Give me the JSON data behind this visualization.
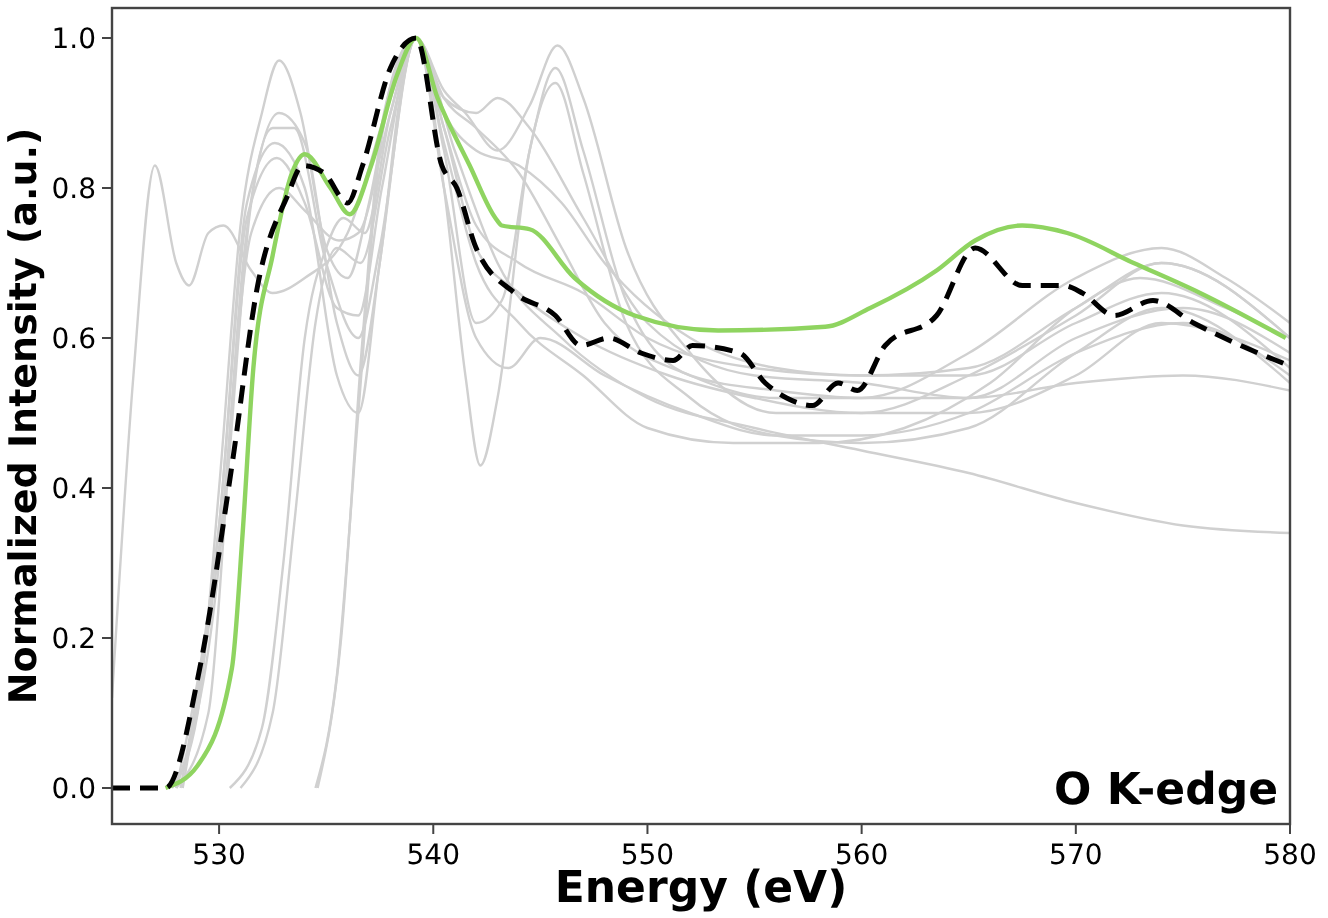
{
  "chart_data": {
    "type": "line",
    "xlabel": "Energy (eV)",
    "ylabel": "Normalized Intensity (a.u.)",
    "xlim": [
      525,
      580
    ],
    "xticks": [
      530,
      540,
      550,
      560,
      570,
      580
    ],
    "ylim": [
      -0.048,
      1.04
    ],
    "yticks": [
      {
        "value": 0,
        "label": "0.0"
      },
      {
        "value": 0.2,
        "label": "0.2"
      },
      {
        "value": 0.4,
        "label": "0.4"
      },
      {
        "value": 0.6,
        "label": "0.6"
      },
      {
        "value": 0.8,
        "label": "0.8"
      },
      {
        "value": 1,
        "label": "1.0"
      }
    ],
    "grid": false,
    "marker": "none",
    "annotations": [
      "O K-edge"
    ],
    "series": [
      {
        "color": "#d0d0d0",
        "x": [
          525,
          526,
          527,
          528,
          528.6,
          529.5,
          530.2,
          531.5,
          532.5,
          534,
          536,
          538,
          539.2,
          541,
          543,
          546,
          550,
          555,
          560,
          565,
          570,
          575,
          580
        ],
        "values": [
          0.12,
          0.55,
          0.83,
          0.7,
          0.67,
          0.74,
          0.75,
          0.69,
          0.66,
          0.68,
          0.74,
          0.92,
          1.0,
          0.85,
          0.7,
          0.6,
          0.52,
          0.48,
          0.45,
          0.42,
          0.38,
          0.35,
          0.34
        ]
      },
      {
        "color": "#d0d0d0",
        "x": [
          527.8,
          529,
          530,
          531,
          532,
          532.8,
          533.8,
          535,
          536,
          537,
          538.2,
          539.2,
          540.5,
          542,
          544,
          546,
          548,
          552,
          556,
          560,
          565,
          570,
          574,
          577,
          580
        ],
        "values": [
          0,
          0.1,
          0.4,
          0.75,
          0.9,
          0.97,
          0.9,
          0.72,
          0.68,
          0.78,
          0.95,
          1.0,
          0.92,
          0.88,
          0.82,
          0.72,
          0.62,
          0.55,
          0.52,
          0.52,
          0.58,
          0.68,
          0.72,
          0.68,
          0.62
        ]
      },
      {
        "color": "#d0d0d0",
        "x": [
          528,
          529.5,
          530.5,
          531.5,
          532.8,
          534,
          535.5,
          536.5,
          537.5,
          538.5,
          539.2,
          540.5,
          542,
          544,
          547,
          550,
          555,
          560,
          565,
          570,
          574,
          580
        ],
        "values": [
          0,
          0.1,
          0.45,
          0.78,
          0.9,
          0.86,
          0.62,
          0.55,
          0.7,
          0.93,
          1.0,
          0.88,
          0.75,
          0.7,
          0.66,
          0.6,
          0.56,
          0.55,
          0.55,
          0.62,
          0.66,
          0.56
        ]
      },
      {
        "color": "#d0d0d0",
        "x": [
          528,
          530,
          531.2,
          532.5,
          533.5,
          535,
          536.5,
          537.5,
          539.2,
          540.5,
          542,
          543.5,
          545,
          548,
          552,
          556,
          560,
          565,
          570,
          575,
          580
        ],
        "values": [
          0,
          0.3,
          0.72,
          0.88,
          0.88,
          0.7,
          0.6,
          0.72,
          1.0,
          0.8,
          0.6,
          0.56,
          0.6,
          0.55,
          0.5,
          0.47,
          0.47,
          0.5,
          0.58,
          0.62,
          0.55
        ]
      },
      {
        "color": "#d0d0d0",
        "x": [
          530.5,
          532,
          533,
          534,
          535,
          535.8,
          536.8,
          538,
          539.2,
          540.5,
          541.5,
          543,
          544.5,
          545.8,
          547,
          549,
          552,
          556,
          560,
          565,
          570,
          574,
          580
        ],
        "values": [
          0,
          0.08,
          0.3,
          0.6,
          0.72,
          0.76,
          0.74,
          0.9,
          1.0,
          0.93,
          0.9,
          0.85,
          0.91,
          0.99,
          0.92,
          0.72,
          0.58,
          0.5,
          0.5,
          0.55,
          0.63,
          0.7,
          0.6
        ]
      },
      {
        "color": "#d0d0d0",
        "x": [
          531,
          532.5,
          533.5,
          534.5,
          535.5,
          536.6,
          538,
          539.2,
          540.5,
          542,
          543.2,
          544.5,
          545.7,
          547,
          549,
          552,
          556,
          560,
          565,
          570,
          575,
          580
        ],
        "values": [
          0,
          0.1,
          0.35,
          0.62,
          0.72,
          0.7,
          0.88,
          1.0,
          0.85,
          0.62,
          0.65,
          0.85,
          0.96,
          0.85,
          0.65,
          0.55,
          0.53,
          0.52,
          0.52,
          0.6,
          0.64,
          0.58
        ]
      },
      {
        "color": "#d0d0d0",
        "x": [
          534.5,
          535.5,
          536.5,
          537.5,
          538.5,
          539.2,
          540.5,
          541.5,
          542.2,
          543,
          544.5,
          545.7,
          547,
          549,
          552,
          556,
          560,
          565,
          570,
          574,
          580
        ],
        "values": [
          0,
          0.15,
          0.5,
          0.85,
          0.98,
          1.0,
          0.8,
          0.55,
          0.43,
          0.52,
          0.85,
          0.94,
          0.82,
          0.62,
          0.52,
          0.47,
          0.46,
          0.48,
          0.58,
          0.64,
          0.54
        ]
      },
      {
        "color": "#d0d0d0",
        "x": [
          534.6,
          535.7,
          536.7,
          537.7,
          539.2,
          540.5,
          542,
          544,
          547,
          550,
          554,
          558,
          562,
          566,
          570,
          573,
          577,
          580
        ],
        "values": [
          0,
          0.2,
          0.6,
          0.9,
          1.0,
          0.86,
          0.7,
          0.62,
          0.55,
          0.48,
          0.46,
          0.46,
          0.48,
          0.54,
          0.64,
          0.68,
          0.64,
          0.6
        ]
      },
      {
        "color": "#d0d0d0",
        "x": [
          528.2,
          530,
          531.3,
          532.6,
          534,
          535.5,
          536.5,
          537.5,
          539.2,
          540.5,
          542,
          544,
          546,
          548,
          552,
          556,
          560,
          565,
          570,
          574,
          580
        ],
        "values": [
          0,
          0.35,
          0.78,
          0.86,
          0.8,
          0.55,
          0.5,
          0.7,
          1.0,
          0.9,
          0.85,
          0.83,
          0.78,
          0.7,
          0.6,
          0.56,
          0.55,
          0.56,
          0.64,
          0.7,
          0.6
        ]
      },
      {
        "color": "#d0d0d0",
        "x": [
          528,
          530,
          531.3,
          532.7,
          534,
          535.5,
          536.5,
          537.6,
          539.2,
          540.5,
          542,
          544,
          547,
          551,
          555,
          560,
          565,
          570,
          574,
          580
        ],
        "values": [
          0,
          0.35,
          0.76,
          0.84,
          0.78,
          0.64,
          0.63,
          0.8,
          1.0,
          0.88,
          0.72,
          0.66,
          0.6,
          0.55,
          0.52,
          0.5,
          0.5,
          0.55,
          0.62,
          0.57
        ]
      },
      {
        "color": "#d0d0d0",
        "x": [
          528.3,
          530,
          531.5,
          532.8,
          534,
          535.6,
          536.5,
          538,
          539.2,
          540.5,
          542,
          543,
          544.5,
          547,
          550,
          555,
          560,
          565,
          570,
          575,
          580
        ],
        "values": [
          0,
          0.32,
          0.74,
          0.8,
          0.77,
          0.73,
          0.74,
          0.9,
          1.0,
          0.92,
          0.9,
          0.92,
          0.88,
          0.76,
          0.62,
          0.55,
          0.54,
          0.52,
          0.54,
          0.55,
          0.53
        ]
      },
      {
        "color": "#8fd460",
        "x": [
          527.5,
          529,
          530.6,
          531.1,
          531.6,
          532.5,
          533.4,
          534,
          535.2,
          536.1,
          537.1,
          538.3,
          539.2,
          540.2,
          541.7,
          542.9,
          543.2,
          544.5,
          546.6,
          549.4,
          553.3,
          558.3,
          560.4,
          563.5,
          565.3,
          567.5,
          569.6,
          572.7,
          575.8,
          579.8
        ],
        "values": [
          0,
          0.03,
          0.16,
          0.34,
          0.56,
          0.71,
          0.82,
          0.845,
          0.8,
          0.765,
          0.83,
          0.95,
          1.0,
          0.92,
          0.83,
          0.76,
          0.75,
          0.745,
          0.68,
          0.63,
          0.61,
          0.615,
          0.64,
          0.69,
          0.73,
          0.75,
          0.74,
          0.7,
          0.66,
          0.6
        ]
      },
      {
        "color": "#000000",
        "line_style": "dashed",
        "x": [
          525,
          527.5,
          529.1,
          530.6,
          531.8,
          533.2,
          533.9,
          534.9,
          536,
          536.7,
          538,
          539.2,
          540.4,
          541.1,
          542,
          543.8,
          545.7,
          546.9,
          548.2,
          549.7,
          551.2,
          552.1,
          554.3,
          555.5,
          556.5,
          557.7,
          558.9,
          559.8,
          561.1,
          563.5,
          565.3,
          567.5,
          569.4,
          570.3,
          571.8,
          573.6,
          575.5,
          577.7,
          579.8
        ],
        "values": [
          0,
          0,
          0.16,
          0.43,
          0.67,
          0.79,
          0.83,
          0.82,
          0.78,
          0.83,
          0.96,
          1.0,
          0.83,
          0.8,
          0.72,
          0.66,
          0.63,
          0.59,
          0.6,
          0.58,
          0.57,
          0.59,
          0.58,
          0.54,
          0.52,
          0.51,
          0.54,
          0.53,
          0.59,
          0.63,
          0.72,
          0.67,
          0.67,
          0.66,
          0.63,
          0.65,
          0.62,
          0.59,
          0.565
        ]
      }
    ]
  }
}
